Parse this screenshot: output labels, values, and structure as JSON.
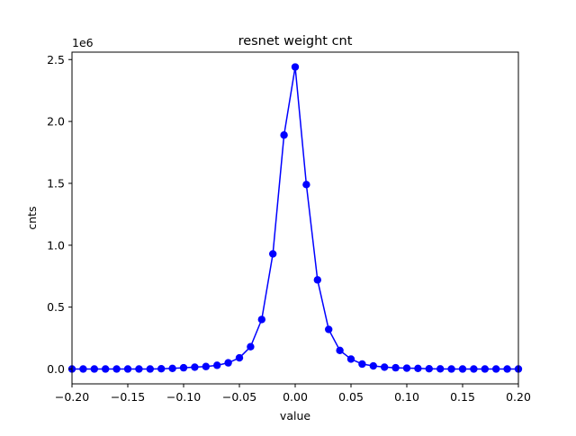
{
  "chart_data": {
    "type": "line",
    "title": "resnet weight cnt",
    "xlabel": "value",
    "ylabel": "cnts",
    "y_offset_label": "1e6",
    "xlim": [
      -0.2,
      0.2
    ],
    "ylim": [
      -0.12,
      2.56
    ],
    "xticks": [
      -0.2,
      -0.15,
      -0.1,
      -0.05,
      0.0,
      0.05,
      0.1,
      0.15,
      0.2
    ],
    "xtick_labels": [
      "−0.20",
      "−0.15",
      "−0.10",
      "−0.05",
      "0.00",
      "0.05",
      "0.10",
      "0.15",
      "0.20"
    ],
    "yticks": [
      0.0,
      0.5,
      1.0,
      1.5,
      2.0,
      2.5
    ],
    "ytick_labels": [
      "0.0",
      "0.5",
      "1.0",
      "1.5",
      "2.0",
      "2.5"
    ],
    "grid": false,
    "color": "#0000ff",
    "marker": "circle",
    "x": [
      -0.2,
      -0.19,
      -0.18,
      -0.17,
      -0.16,
      -0.15,
      -0.14,
      -0.13,
      -0.12,
      -0.11,
      -0.1,
      -0.09,
      -0.08,
      -0.07,
      -0.06,
      -0.05,
      -0.04,
      -0.03,
      -0.02,
      -0.01,
      0.0,
      0.01,
      0.02,
      0.03,
      0.04,
      0.05,
      0.06,
      0.07,
      0.08,
      0.09,
      0.1,
      0.11,
      0.12,
      0.13,
      0.14,
      0.15,
      0.16,
      0.17,
      0.18,
      0.19,
      0.2
    ],
    "y": [
      0.0,
      0.0,
      0.0,
      0.0,
      0.0,
      0.0,
      0.0,
      0.0,
      0.002,
      0.005,
      0.01,
      0.015,
      0.02,
      0.03,
      0.05,
      0.09,
      0.18,
      0.4,
      0.93,
      1.89,
      2.44,
      1.49,
      0.72,
      0.32,
      0.15,
      0.08,
      0.04,
      0.025,
      0.015,
      0.01,
      0.007,
      0.005,
      0.002,
      0.001,
      0.0,
      0.0,
      0.0,
      0.0,
      0.0,
      0.0,
      0.0
    ]
  }
}
